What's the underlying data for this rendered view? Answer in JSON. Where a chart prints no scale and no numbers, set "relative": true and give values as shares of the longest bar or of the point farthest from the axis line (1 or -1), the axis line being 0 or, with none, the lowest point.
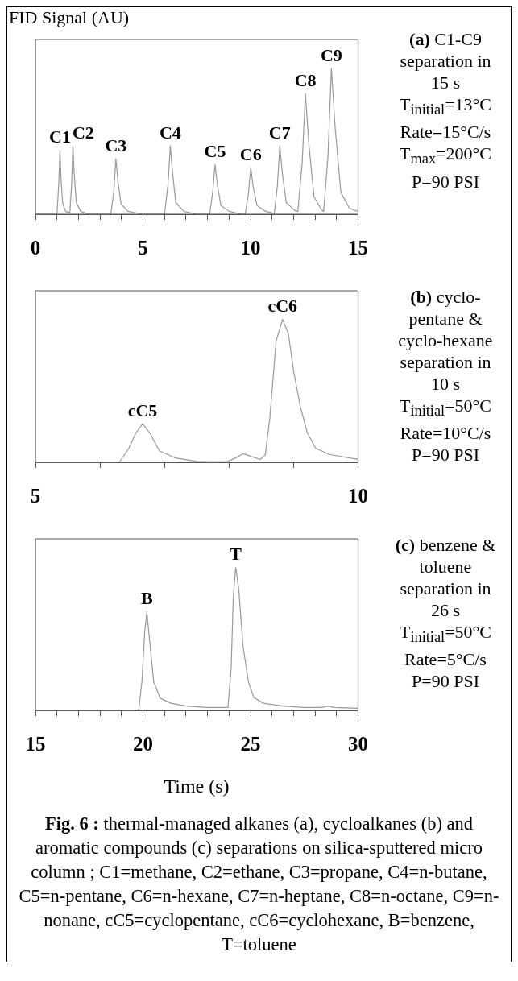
{
  "chart_data": [
    {
      "type": "line",
      "ylabel": "FID Signal (AU)",
      "relative": true,
      "color": "#999999",
      "xlim": [
        0,
        15
      ],
      "xticks": [
        0,
        {
          "value": 1,
          "label": null
        },
        {
          "value": 2,
          "label": null
        },
        {
          "value": 3,
          "label": null
        },
        {
          "value": 4,
          "label": null
        },
        5,
        {
          "value": 6,
          "label": null
        },
        {
          "value": 7,
          "label": null
        },
        {
          "value": 8,
          "label": null
        },
        {
          "value": 9,
          "label": null
        },
        10,
        {
          "value": 11,
          "label": null
        },
        {
          "value": 12,
          "label": null
        },
        {
          "value": 13,
          "label": null
        },
        {
          "value": 14,
          "label": null
        },
        15
      ],
      "x": [
        0,
        1.0,
        1.08,
        1.14,
        1.19,
        1.26,
        1.4,
        1.6,
        1.68,
        1.74,
        1.8,
        1.9,
        2.1,
        2.5,
        3.5,
        3.64,
        3.74,
        3.84,
        3.98,
        4.3,
        5.0,
        6.0,
        6.16,
        6.27,
        6.38,
        6.52,
        6.9,
        7.5,
        8.1,
        8.24,
        8.35,
        8.46,
        8.62,
        9.0,
        9.6,
        9.75,
        9.9,
        10.01,
        10.12,
        10.3,
        10.7,
        11.0,
        11.1,
        11.25,
        11.36,
        11.48,
        11.66,
        12.1,
        12.2,
        12.4,
        12.55,
        12.7,
        12.95,
        13.3,
        13.4,
        13.6,
        13.76,
        13.93,
        14.2,
        14.6,
        15
      ],
      "values": [
        0,
        0,
        0.2,
        0.44,
        0.25,
        0.08,
        0.02,
        0.01,
        0.2,
        0.47,
        0.28,
        0.08,
        0.02,
        0,
        0,
        0.15,
        0.38,
        0.22,
        0.07,
        0.02,
        0,
        0,
        0.2,
        0.47,
        0.28,
        0.08,
        0.02,
        0,
        0,
        0.15,
        0.34,
        0.2,
        0.06,
        0.02,
        0,
        0,
        0.14,
        0.32,
        0.19,
        0.06,
        0.02,
        0.01,
        0,
        0.2,
        0.47,
        0.28,
        0.08,
        0.02,
        0.02,
        0.35,
        0.83,
        0.5,
        0.12,
        0.03,
        0.02,
        0.4,
        1.0,
        0.6,
        0.15,
        0.04,
        0.02
      ],
      "annotations": [
        "(a) C1-C9 separation in 15 s",
        {
          "text": "C1",
          "x": 1.14,
          "y": 0.44
        },
        {
          "text": "C2",
          "x": 1.74,
          "y": 0.47
        },
        {
          "text": "C3",
          "x": 3.74,
          "y": 0.38
        },
        {
          "text": "C4",
          "x": 6.27,
          "y": 0.47
        },
        {
          "text": "C5",
          "x": 8.35,
          "y": 0.34
        },
        {
          "text": "C6",
          "x": 10.01,
          "y": 0.32
        },
        {
          "text": "C7",
          "x": 11.36,
          "y": 0.47
        },
        {
          "text": "C8",
          "x": 12.55,
          "y": 0.83
        },
        {
          "text": "C9",
          "x": 13.76,
          "y": 1.0
        },
        "T$_{initial}$=13°C",
        "Rate=15°C/s",
        "T$_{max}$=200°C",
        "P=90 PSI"
      ]
    },
    {
      "type": "line",
      "relative": true,
      "color": "#999999",
      "xlim": [
        5,
        10
      ],
      "xticks": [
        5,
        {
          "value": 6,
          "label": null
        },
        {
          "value": 7,
          "label": null
        },
        {
          "value": 8,
          "label": null
        },
        {
          "value": 9,
          "label": null
        },
        10
      ],
      "x": [
        5,
        6.3,
        6.45,
        6.55,
        6.66,
        6.78,
        6.92,
        7.17,
        7.5,
        7.96,
        8.1,
        8.22,
        8.35,
        8.48,
        8.56,
        8.63,
        8.73,
        8.83,
        8.92,
        9.0,
        9.1,
        9.21,
        9.34,
        9.55,
        10
      ],
      "values": [
        0,
        0,
        0.1,
        0.2,
        0.27,
        0.2,
        0.08,
        0.03,
        0.006,
        0.003,
        0.03,
        0.06,
        0.04,
        0.02,
        0.05,
        0.3,
        0.85,
        1.0,
        0.9,
        0.64,
        0.4,
        0.21,
        0.1,
        0.055,
        0.02
      ],
      "annotations": [
        "(b) cyclo-pentane & cyclo-hexane separation in 10 s",
        {
          "text": "cC5",
          "x": 6.66,
          "y": 0.27
        },
        {
          "text": "cC6",
          "x": 8.83,
          "y": 1.0
        },
        "T$_{initial}$=50°C",
        "Rate=10°C/s",
        "P=90 PSI"
      ]
    },
    {
      "type": "line",
      "xlabel": "Time (s)",
      "relative": true,
      "color": "#999999",
      "xlim": [
        15,
        30
      ],
      "xticks": [
        15,
        {
          "value": 16,
          "label": null
        },
        {
          "value": 17,
          "label": null
        },
        {
          "value": 18,
          "label": null
        },
        {
          "value": 19,
          "label": null
        },
        20,
        {
          "value": 21,
          "label": null
        },
        {
          "value": 22,
          "label": null
        },
        {
          "value": 23,
          "label": null
        },
        {
          "value": 24,
          "label": null
        },
        25,
        {
          "value": 26,
          "label": null
        },
        {
          "value": 27,
          "label": null
        },
        {
          "value": 28,
          "label": null
        },
        {
          "value": 29,
          "label": null
        },
        30
      ],
      "x": [
        15,
        19.8,
        19.95,
        20.08,
        20.18,
        20.3,
        20.5,
        20.8,
        21.3,
        22,
        23,
        23.95,
        24.1,
        24.2,
        24.31,
        24.45,
        24.65,
        24.9,
        25.15,
        25.6,
        26.5,
        27.5,
        28.3,
        28.6,
        28.9,
        30
      ],
      "values": [
        0,
        0,
        0.2,
        0.55,
        0.69,
        0.5,
        0.2,
        0.085,
        0.05,
        0.03,
        0.02,
        0.02,
        0.3,
        0.8,
        1.0,
        0.85,
        0.45,
        0.2,
        0.09,
        0.05,
        0.03,
        0.02,
        0.02,
        0.03,
        0.02,
        0.015
      ],
      "annotations": [
        "(c) benzene & toluene separation in 26 s",
        {
          "text": "B",
          "x": 20.18,
          "y": 0.69
        },
        {
          "text": "T",
          "x": 24.31,
          "y": 1.0
        },
        "T$_{initial}$=50°C",
        "Rate=5°C/s",
        "P=90 PSI",
        "Fig. 6 : thermal-managed alkanes (a), cycloalkanes (b) and aromatic compounds (c) separations on silica-sputtered micro column ; C1=methane, C2=ethane, C3=propane, C4=n-butane, C5=n-pentane, C6=n-hexane, C7=n-heptane, C8=n-octane, C9=n-nonane, cC5=cyclopentane, cC6=cyclohexane, B=benzene, T=toluene"
      ]
    }
  ]
}
